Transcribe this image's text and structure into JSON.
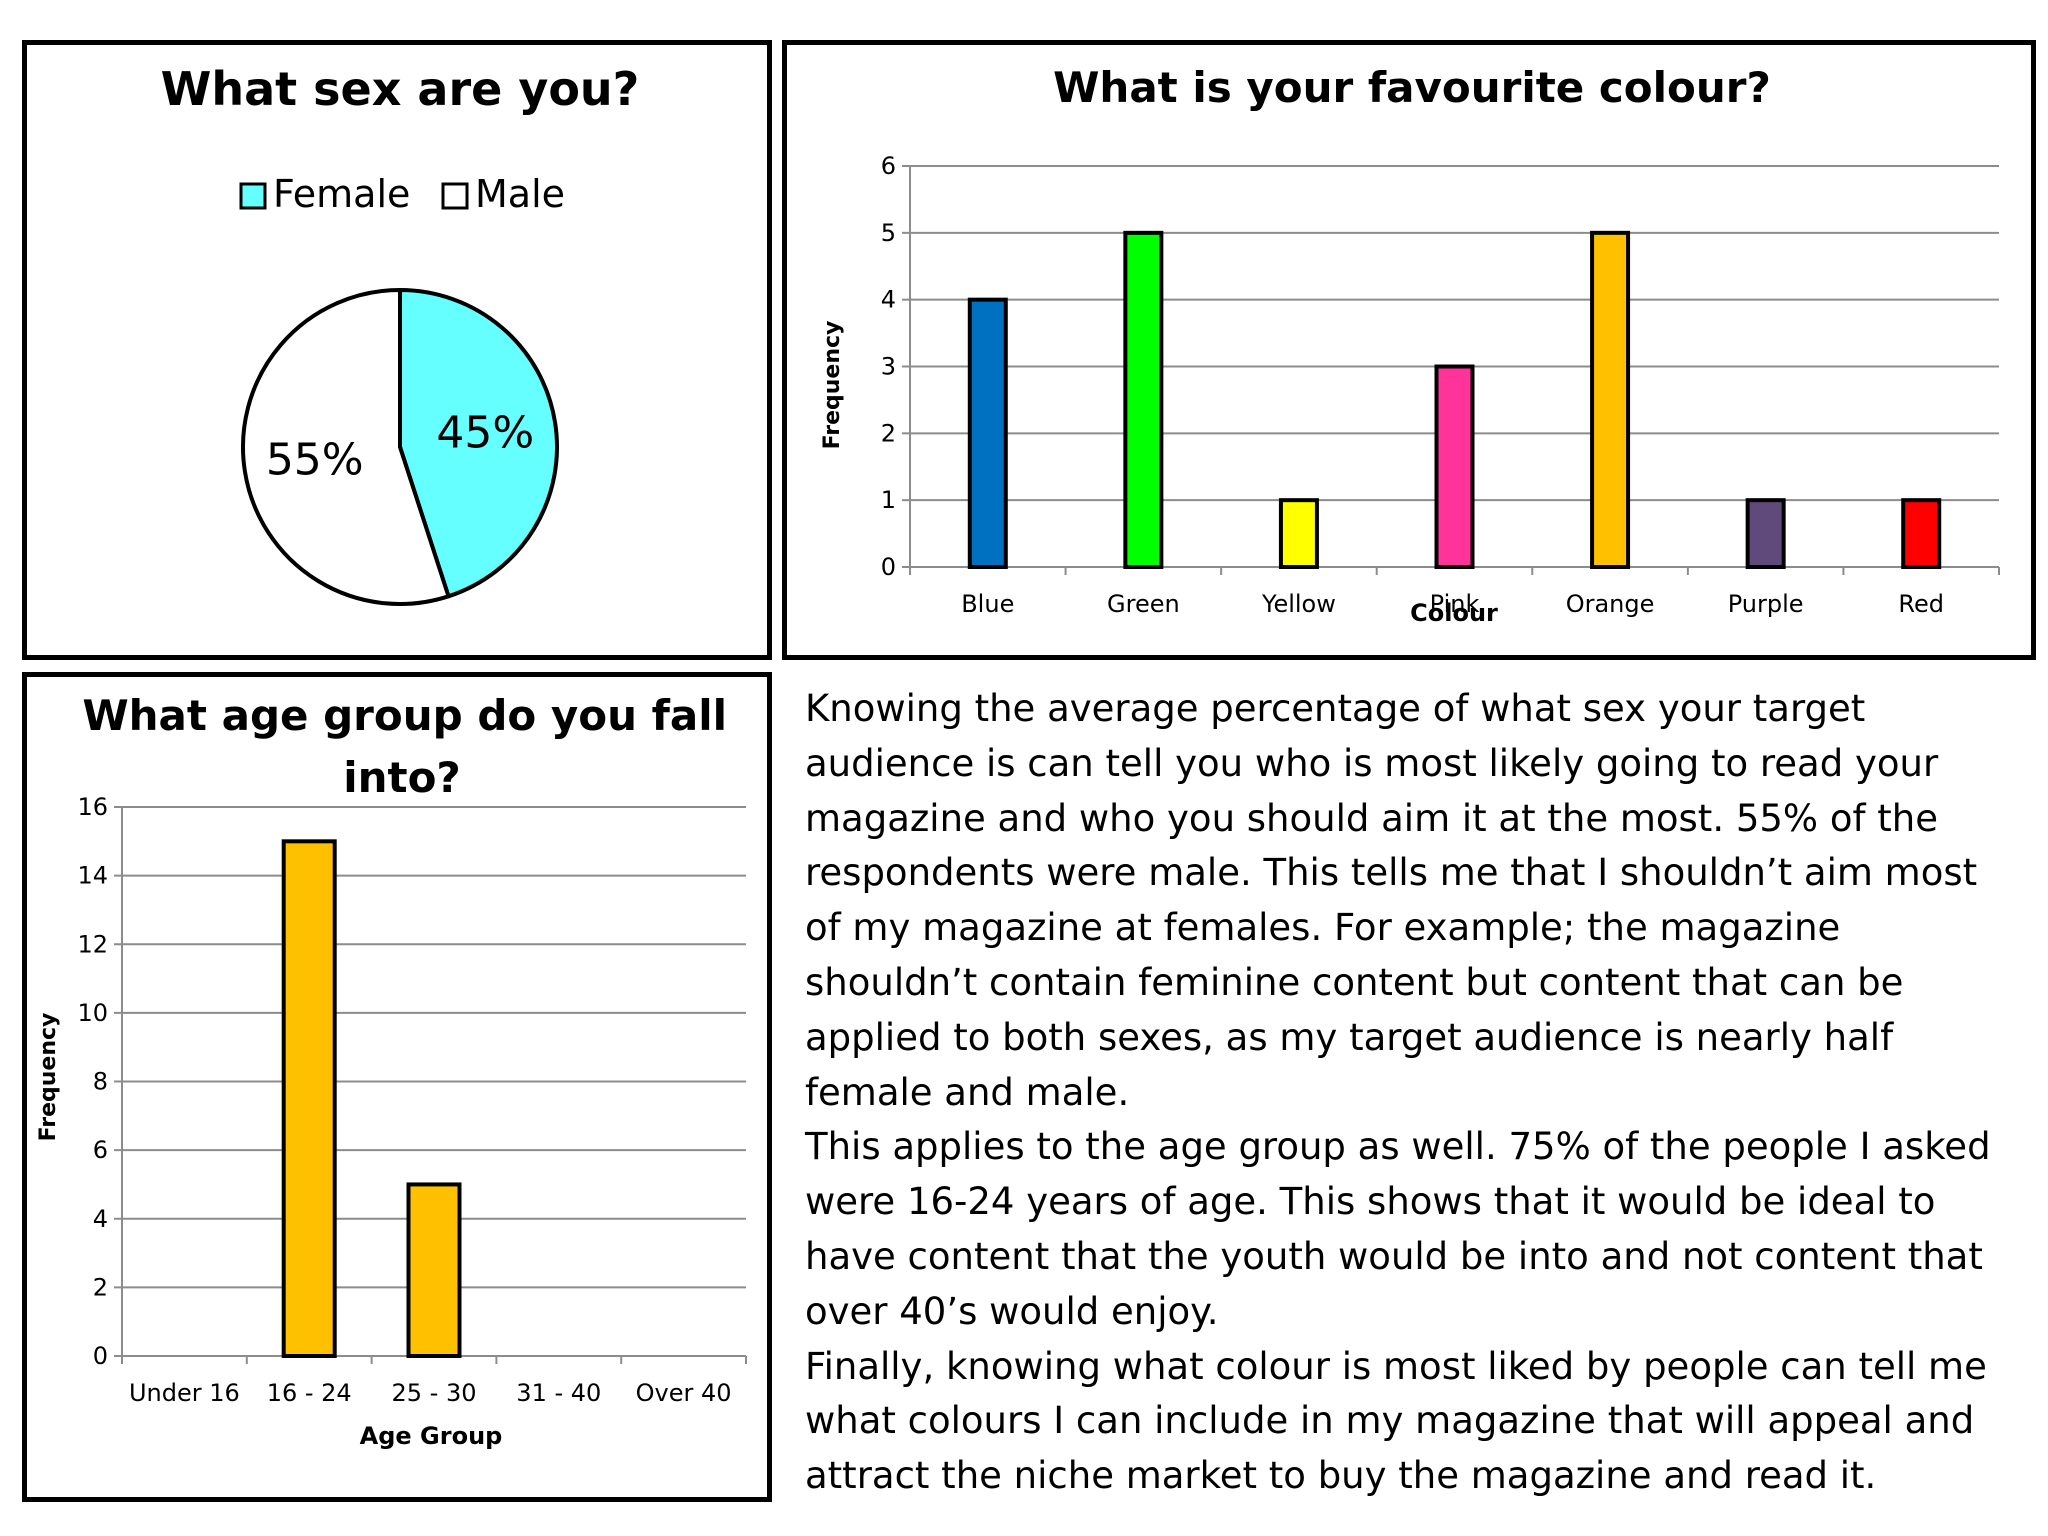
{
  "chart_data": [
    {
      "type": "pie",
      "title": "What sex are you?",
      "legend": [
        "Female",
        "Male"
      ],
      "legend_position": "top",
      "slices": [
        {
          "label": "Female",
          "value": 45,
          "data_label": "45%",
          "color": "#66FFFF"
        },
        {
          "label": "Male",
          "value": 55,
          "data_label": "55%",
          "color": "#FFFFFF"
        }
      ]
    },
    {
      "type": "bar",
      "title": "What is your favourite colour?",
      "xlabel": "Colour",
      "ylabel": "Frequency",
      "ylim": [
        0,
        6
      ],
      "yticks": [
        "0",
        "1",
        "2",
        "3",
        "4",
        "5",
        "6"
      ],
      "grid": true,
      "categories": [
        "Blue",
        "Green",
        "Yellow",
        "Pink",
        "Orange",
        "Purple",
        "Red"
      ],
      "values": [
        4,
        5,
        1,
        3,
        5,
        1,
        1
      ],
      "colors": [
        "#0070C0",
        "#00FF00",
        "#FFFF00",
        "#FF3399",
        "#FFC000",
        "#604A7B",
        "#FF0000"
      ]
    },
    {
      "type": "bar",
      "title": "What age group do you fall into?",
      "xlabel": "Age Group",
      "ylabel": "Frequency",
      "ylim": [
        0,
        16
      ],
      "yticks": [
        "0",
        "2",
        "4",
        "6",
        "8",
        "10",
        "12",
        "14",
        "16"
      ],
      "grid": true,
      "categories": [
        "Under 16",
        "16 - 24",
        "25 - 30",
        "31 - 40",
        "Over 40"
      ],
      "values": [
        0,
        15,
        5,
        0,
        0
      ],
      "colors": [
        "#FFC000",
        "#FFC000",
        "#FFC000",
        "#FFC000",
        "#FFC000"
      ]
    }
  ],
  "analysis": {
    "paragraphs": [
      "Knowing the average percentage of what sex your target audience is can tell you who is most likely going to read your magazine and who you should aim it at the most. 55% of the respondents were male. This tells me that I shouldn’t aim most of my magazine at females. For example; the magazine shouldn’t contain feminine content but content that can be applied to both sexes, as my target audience is nearly half female and male.",
      "This applies to the age group as well.  75% of the people I asked were 16-24 years of age. This shows that it would be ideal to have content that the youth would be into and not content that over 40’s would enjoy.",
      "Finally, knowing what colour is most liked by people can tell me what colours I can include in my magazine that will appeal and attract the niche market to buy the magazine and read it."
    ]
  }
}
